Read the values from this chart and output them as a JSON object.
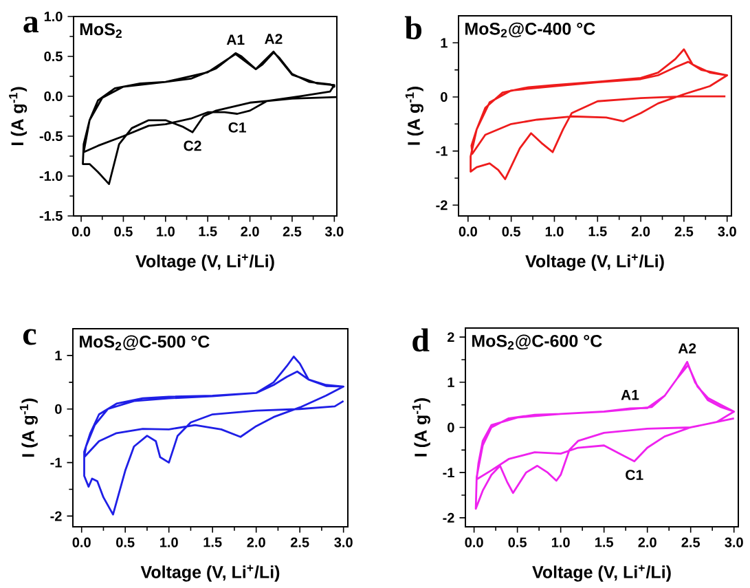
{
  "chart_data": [
    {
      "type": "line",
      "title": "MoS$_{2}$",
      "xlabel": "Voltage (V, Li$^{+}$/Li)",
      "ylabel": "I (A g$^{-1}$)",
      "xlim": [
        -0.09,
        3.03
      ],
      "ylim": [
        -1.5,
        1.0
      ],
      "xticks": [
        {
          "value": 0,
          "label": "0.0"
        },
        0.5,
        {
          "value": 1,
          "label": "1.0"
        },
        1.5,
        {
          "value": 2,
          "label": "2.0"
        },
        2.5,
        {
          "value": 3,
          "label": "3.0"
        }
      ],
      "yticks": [
        -1.5,
        {
          "value": -1,
          "label": "-1.0"
        },
        -0.5,
        {
          "value": 0,
          "label": "0.0"
        },
        0.5,
        {
          "value": 1,
          "label": "1.0"
        }
      ],
      "annotations": [
        "a",
        {
          "text": "A1",
          "x": 1.83,
          "y": 0.54
        },
        {
          "text": "A2",
          "x": 2.28,
          "y": 0.55
        },
        {
          "text": "C1",
          "x": 1.85,
          "y": -0.22
        },
        {
          "text": "C2",
          "x": 1.32,
          "y": -0.45
        }
      ],
      "series": [
        {
          "color": "#000000",
          "x": [
            3.03,
            2.5,
            2.0,
            1.6,
            1.45,
            1.32,
            1.2,
            1.0,
            0.8,
            0.6,
            0.45,
            0.33,
            0.2,
            0.1,
            0.02,
            0.03,
            0.1,
            0.2,
            0.4,
            0.7,
            1.0,
            1.3,
            1.6,
            1.83,
            1.9,
            2.07,
            2.15,
            2.28,
            2.35,
            2.5,
            2.7,
            2.95,
            3.0,
            3.0,
            2.95,
            2.6,
            2.2,
            2.0,
            1.85,
            1.7,
            1.5,
            1.3,
            1.0,
            0.8,
            0.5,
            0.2,
            0.03,
            0.1,
            0.25,
            0.5,
            1.0,
            1.5,
            1.83,
            2.07,
            2.28,
            2.5,
            2.8,
            3.0
          ],
          "values": [
            -0.01,
            -0.03,
            -0.08,
            -0.18,
            -0.25,
            -0.45,
            -0.38,
            -0.3,
            -0.3,
            -0.4,
            -0.6,
            -1.1,
            -0.95,
            -0.85,
            -0.85,
            -0.6,
            -0.3,
            -0.05,
            0.1,
            0.16,
            0.18,
            0.22,
            0.35,
            0.54,
            0.5,
            0.34,
            0.4,
            0.55,
            0.48,
            0.28,
            0.18,
            0.15,
            0.12,
            0.14,
            0.06,
            0.0,
            -0.06,
            -0.18,
            -0.22,
            -0.2,
            -0.2,
            -0.28,
            -0.35,
            -0.37,
            -0.5,
            -0.62,
            -0.7,
            -0.3,
            -0.02,
            0.12,
            0.18,
            0.3,
            0.53,
            0.34,
            0.56,
            0.27,
            0.16,
            0.14
          ]
        }
      ]
    },
    {
      "type": "line",
      "title": "MoS$_{2}$@C-400 °C",
      "xlabel": "Voltage (V, Li$^{+}$/Li)",
      "ylabel": "I (A g$^{-1}$)",
      "xlim": [
        -0.11,
        3.05
      ],
      "ylim": [
        -2.2,
        1.5
      ],
      "xticks": [
        {
          "value": 0,
          "label": "0.0"
        },
        0.5,
        {
          "value": 1,
          "label": "1.0"
        },
        1.5,
        {
          "value": 2,
          "label": "2.0"
        },
        2.5,
        {
          "value": 3,
          "label": "3.0"
        }
      ],
      "yticks": [
        -2,
        -1,
        0,
        1
      ],
      "annotations": [
        "b"
      ],
      "series": [
        {
          "color": "#ee1c1c",
          "x": [
            2.98,
            2.5,
            2.0,
            1.5,
            1.2,
            1.1,
            0.98,
            0.85,
            0.73,
            0.6,
            0.43,
            0.35,
            0.25,
            0.1,
            0.03,
            0.03,
            0.1,
            0.2,
            0.4,
            0.7,
            1.0,
            1.5,
            2.0,
            2.2,
            2.4,
            2.5,
            2.6,
            2.8,
            3.0,
            2.8,
            2.5,
            2.2,
            2.0,
            1.8,
            1.6,
            1.2,
            0.8,
            0.5,
            0.2,
            0.05,
            0.04,
            0.1,
            0.25,
            0.5,
            1.0,
            1.5,
            2.0,
            2.2,
            2.4,
            2.55,
            2.7,
            3.0
          ],
          "values": [
            0.01,
            0.01,
            -0.02,
            -0.08,
            -0.3,
            -0.6,
            -1.02,
            -0.85,
            -0.67,
            -0.95,
            -1.52,
            -1.35,
            -1.23,
            -1.3,
            -1.38,
            -1.1,
            -0.6,
            -0.2,
            0.08,
            0.18,
            0.22,
            0.28,
            0.35,
            0.45,
            0.7,
            0.88,
            0.6,
            0.45,
            0.4,
            0.2,
            0.05,
            -0.12,
            -0.3,
            -0.45,
            -0.38,
            -0.36,
            -0.42,
            -0.5,
            -0.7,
            -1.05,
            -0.9,
            -0.6,
            -0.1,
            0.12,
            0.2,
            0.27,
            0.33,
            0.4,
            0.55,
            0.65,
            0.5,
            0.4
          ]
        }
      ]
    },
    {
      "type": "line",
      "title": "MoS$_{2}$@C-500 °C",
      "xlabel": "Voltage (V, Li$^{+}$/Li)",
      "ylabel": "I (A g$^{-1}$)",
      "xlim": [
        -0.1,
        3.05
      ],
      "ylim": [
        -2.2,
        1.5
      ],
      "xticks": [
        {
          "value": 0,
          "label": "0.0"
        },
        0.5,
        {
          "value": 1,
          "label": "1.0"
        },
        1.5,
        {
          "value": 2,
          "label": "2.0"
        },
        2.5,
        {
          "value": 3,
          "label": "3.0"
        }
      ],
      "yticks": [
        -2,
        -1,
        0,
        1
      ],
      "annotations": [
        "c"
      ],
      "series": [
        {
          "color": "#1f1fe6",
          "x": [
            3.0,
            2.9,
            2.5,
            2.0,
            1.5,
            1.25,
            1.1,
            1.0,
            0.9,
            0.85,
            0.75,
            0.6,
            0.5,
            0.36,
            0.25,
            0.18,
            0.12,
            0.08,
            0.03,
            0.03,
            0.1,
            0.2,
            0.4,
            0.7,
            1.0,
            1.5,
            2.0,
            2.2,
            2.35,
            2.43,
            2.5,
            2.6,
            2.8,
            3.0,
            2.8,
            2.5,
            2.2,
            2.0,
            1.82,
            1.6,
            1.3,
            1.0,
            0.7,
            0.4,
            0.2,
            0.03,
            0.05,
            0.15,
            0.3,
            0.6,
            1.0,
            1.5,
            2.0,
            2.2,
            2.35,
            2.47,
            2.6,
            2.8,
            3.0
          ],
          "values": [
            0.15,
            0.05,
            0.0,
            -0.03,
            -0.1,
            -0.25,
            -0.5,
            -1.0,
            -0.9,
            -0.6,
            -0.5,
            -0.7,
            -1.15,
            -1.97,
            -1.65,
            -1.35,
            -1.3,
            -1.45,
            -1.25,
            -0.8,
            -0.45,
            -0.1,
            0.1,
            0.2,
            0.23,
            0.25,
            0.3,
            0.5,
            0.8,
            0.98,
            0.85,
            0.55,
            0.45,
            0.42,
            0.25,
            0.03,
            -0.15,
            -0.32,
            -0.52,
            -0.38,
            -0.3,
            -0.38,
            -0.37,
            -0.45,
            -0.6,
            -0.9,
            -0.7,
            -0.3,
            0.0,
            0.15,
            0.2,
            0.24,
            0.3,
            0.45,
            0.6,
            0.7,
            0.55,
            0.43,
            0.42
          ]
        }
      ]
    },
    {
      "type": "line",
      "title": "MoS$_{2}$@C-600 °C",
      "xlabel": "Voltage (V, Li$^{+}$/Li)",
      "ylabel": "I (A g$^{-1}$)",
      "xlim": [
        -0.1,
        3.05
      ],
      "ylim": [
        -2.2,
        2.2
      ],
      "xticks": [
        {
          "value": 0,
          "label": "0.0"
        },
        0.5,
        {
          "value": 1,
          "label": "1.0"
        },
        1.5,
        {
          "value": 2,
          "label": "2.0"
        },
        2.5,
        {
          "value": 3,
          "label": "3.0"
        }
      ],
      "yticks": [
        -2,
        -1,
        0,
        1,
        2
      ],
      "annotations": [
        "d",
        {
          "text": "A1",
          "x": 1.8,
          "y": 0.42
        },
        {
          "text": "A2",
          "x": 2.46,
          "y": 1.45
        },
        {
          "text": "C1",
          "x": 1.85,
          "y": -0.75
        }
      ],
      "series": [
        {
          "color": "#ee22ee",
          "x": [
            3.0,
            2.5,
            2.0,
            1.5,
            1.2,
            1.1,
            1.0,
            0.95,
            0.85,
            0.73,
            0.6,
            0.45,
            0.38,
            0.3,
            0.2,
            0.1,
            0.02,
            0.03,
            0.1,
            0.2,
            0.4,
            0.7,
            1.0,
            1.5,
            1.8,
            2.0,
            2.2,
            2.35,
            2.46,
            2.55,
            2.7,
            2.85,
            3.0,
            2.8,
            2.5,
            2.2,
            2.0,
            1.85,
            1.7,
            1.5,
            1.2,
            1.0,
            0.7,
            0.4,
            0.2,
            0.03,
            0.05,
            0.1,
            0.2,
            0.5,
            1.0,
            1.5,
            1.8,
            2.05,
            2.2,
            2.35,
            2.47,
            2.58,
            2.7,
            2.85,
            3.0
          ],
          "values": [
            0.2,
            0.0,
            -0.03,
            -0.12,
            -0.3,
            -0.5,
            -1.05,
            -1.18,
            -1.0,
            -0.85,
            -1.0,
            -1.45,
            -1.2,
            -0.85,
            -1.05,
            -1.4,
            -1.8,
            -1.1,
            -0.4,
            0.0,
            0.2,
            0.28,
            0.3,
            0.35,
            0.42,
            0.43,
            0.7,
            1.1,
            1.45,
            1.0,
            0.6,
            0.45,
            0.35,
            0.12,
            0.0,
            -0.2,
            -0.45,
            -0.75,
            -0.6,
            -0.4,
            -0.45,
            -0.58,
            -0.55,
            -0.7,
            -0.95,
            -1.15,
            -0.8,
            -0.3,
            0.05,
            0.22,
            0.3,
            0.35,
            0.4,
            0.45,
            0.7,
            1.1,
            1.38,
            0.9,
            0.65,
            0.5,
            0.35
          ]
        }
      ]
    }
  ]
}
